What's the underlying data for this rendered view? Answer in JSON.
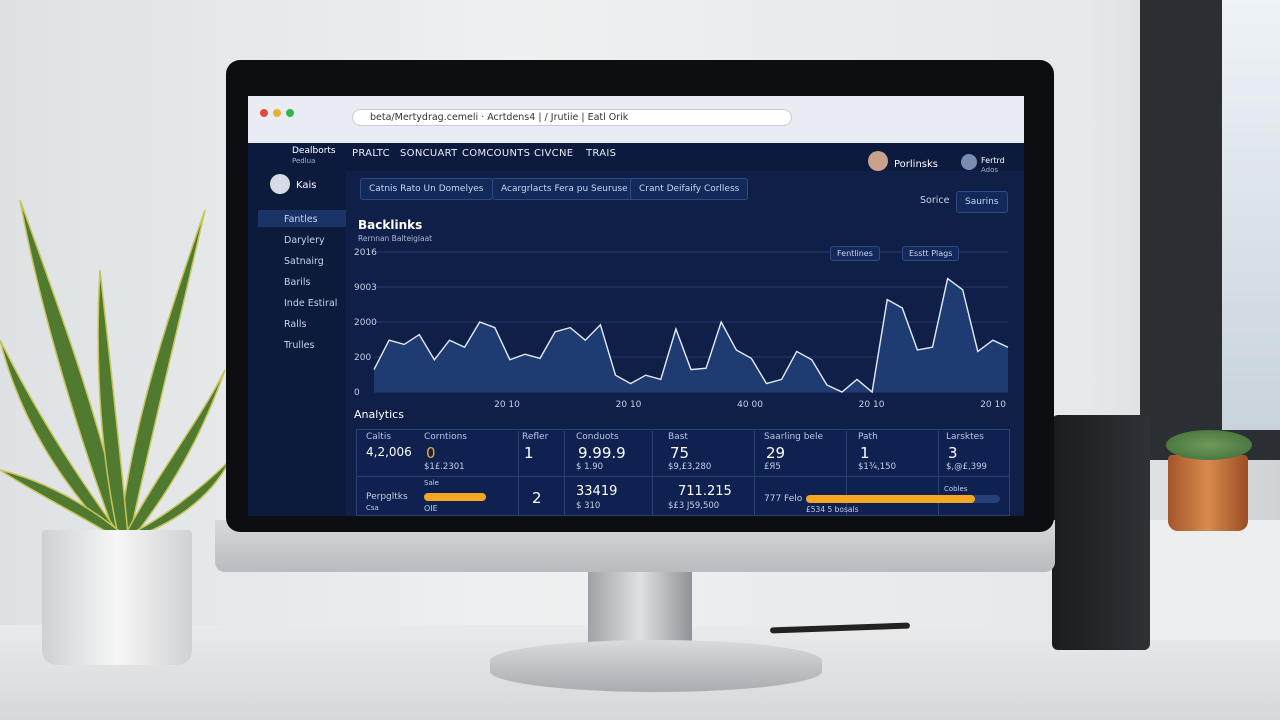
{
  "browser": {
    "url": "beta/Mertydrag.cemeli · Acrtdens4 | / Jrutiie | Eatl Orik"
  },
  "nav": {
    "brand": "Dealborts",
    "brand_sub": "Pedlua",
    "items": [
      "PRALTC",
      "SONCUART",
      "COMCOUNTS",
      "CIVCNE",
      "TRAIS"
    ],
    "user_a": "Porlinsks",
    "user_b": "Fertrd",
    "user_b_sub": "Ados"
  },
  "sidebar": {
    "user": "Kais",
    "items": [
      "Fantles",
      "Darylery",
      "Satnairg",
      "Barils",
      "Inde Estiral",
      "Ralls",
      "Trulles"
    ]
  },
  "filters": [
    "Catnis Rato Un Domelyes",
    "Acargrlacts Fera pu Seuruse",
    "Crant Deifaify Corlless"
  ],
  "actions": {
    "label": "Sorice",
    "button": "Saurins"
  },
  "chart_data": {
    "type": "area",
    "title": "Backlinks",
    "subtitle": "Rernnan Balteiglaat",
    "controls": [
      "Fentlines",
      "Esstt Plags"
    ],
    "y_labels": [
      "0",
      "200",
      "2000",
      "9003",
      "2016"
    ],
    "x_labels": [
      "20 10",
      "20 10",
      "40 00",
      "20 10",
      "20 10"
    ],
    "ylim": [
      0,
      100
    ],
    "color": "#e4ebfa",
    "fill": "#1f3c72",
    "values": [
      16,
      37,
      34,
      41,
      23,
      37,
      32,
      50,
      46,
      23,
      27,
      24,
      43,
      46,
      37,
      48,
      12,
      6,
      12,
      9,
      45,
      16,
      17,
      50,
      30,
      24,
      6,
      9,
      29,
      23,
      5,
      0,
      9,
      0,
      66,
      60,
      30,
      32,
      81,
      73,
      29,
      37,
      32
    ]
  },
  "analytics": {
    "title": "Analytics",
    "row1": [
      {
        "head": "Caltis",
        "value": "4,2,006"
      },
      {
        "head": "Corntions",
        "value": "0",
        "sub": "$1£.2301"
      },
      {
        "head": "Refler",
        "value": "1"
      },
      {
        "head": "Conduots",
        "value": "9.99.9",
        "sub": "$ 1.90"
      },
      {
        "head": "Bast",
        "value": "75",
        "sub": "$9,£3,280"
      },
      {
        "head": "Saarling bele",
        "value": "29",
        "sub": "£Я5"
      },
      {
        "head": "Path",
        "value": "1",
        "sub": "$1¾,150"
      },
      {
        "head": "Larsktes",
        "value": "3",
        "sub": "$,@£,399"
      }
    ],
    "row2": {
      "label": "Perpgltks",
      "label_sub": "Csa",
      "bar_a_label": "Sale",
      "bar_a_sub": "OIE",
      "bar_a_value": 100,
      "count": "2",
      "value_a": "33419",
      "value_a_sub": "$ 310",
      "value_b": "711.215",
      "value_b_sub": "$£3 J59,500",
      "label_b": "777 Felo",
      "bar_b_label": "Cobles",
      "bar_b_sub": "£534 5 bosals",
      "bar_b_value": 87
    }
  }
}
